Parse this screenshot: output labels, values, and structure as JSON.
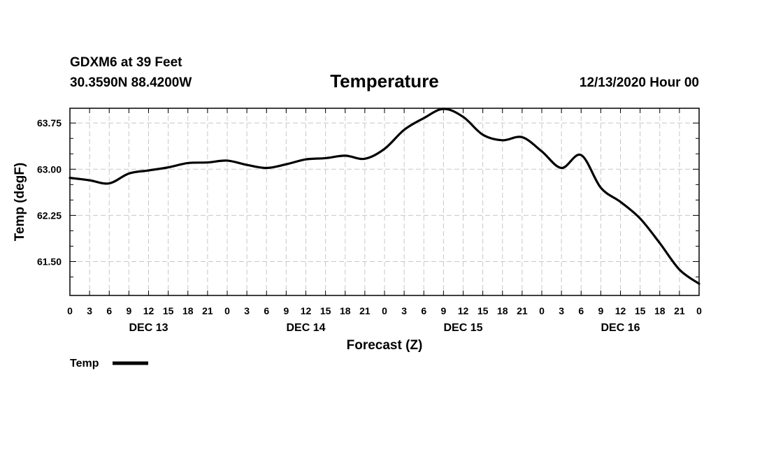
{
  "header": {
    "station": "GDXM6 at 39 Feet",
    "coords": "30.3590N 88.4200W",
    "run": "12/13/2020 Hour 00"
  },
  "colors": {
    "line": "#000000",
    "grid": "#c8c8c8"
  },
  "chart_data": {
    "type": "line",
    "title": "Temperature",
    "xlabel": "Forecast (Z)",
    "ylabel": "Temp (degF)",
    "xlim": [
      0,
      96
    ],
    "ylim": [
      60.95,
      63.99
    ],
    "yticks": [
      61.5,
      62.25,
      63.0,
      63.75
    ],
    "ytick_labels": [
      "61.50",
      "62.25",
      "63.00",
      "63.75"
    ],
    "xticks": [
      0,
      3,
      6,
      9,
      12,
      15,
      18,
      21,
      24,
      27,
      30,
      33,
      36,
      39,
      42,
      45,
      48,
      51,
      54,
      57,
      60,
      63,
      66,
      69,
      72,
      75,
      78,
      81,
      84,
      87,
      90,
      93,
      96
    ],
    "xtick_labels": [
      "0",
      "3",
      "6",
      "9",
      "12",
      "15",
      "18",
      "21",
      "0",
      "3",
      "6",
      "9",
      "12",
      "15",
      "18",
      "21",
      "0",
      "3",
      "6",
      "9",
      "12",
      "15",
      "18",
      "21",
      "0",
      "3",
      "6",
      "9",
      "12",
      "15",
      "18",
      "21",
      "0"
    ],
    "day_labels": [
      {
        "label": "DEC 13",
        "x": 12
      },
      {
        "label": "DEC 14",
        "x": 36
      },
      {
        "label": "DEC 15",
        "x": 60
      },
      {
        "label": "DEC 16",
        "x": 84
      }
    ],
    "legend": [
      {
        "name": "Temp",
        "placement": "bottom-left"
      }
    ],
    "series": [
      {
        "name": "Temp",
        "x": [
          0,
          3,
          6,
          9,
          12,
          15,
          18,
          21,
          24,
          27,
          30,
          33,
          36,
          39,
          42,
          45,
          48,
          51,
          54,
          57,
          60,
          63,
          66,
          69,
          72,
          75,
          78,
          81,
          84,
          87,
          90,
          93,
          96
        ],
        "values": [
          62.86,
          62.82,
          62.77,
          62.93,
          62.98,
          63.03,
          63.1,
          63.11,
          63.14,
          63.07,
          63.02,
          63.08,
          63.16,
          63.18,
          63.22,
          63.17,
          63.33,
          63.64,
          63.83,
          63.98,
          63.85,
          63.56,
          63.47,
          63.52,
          63.29,
          63.02,
          63.23,
          62.7,
          62.47,
          62.2,
          61.8,
          61.37,
          61.14
        ]
      }
    ]
  }
}
